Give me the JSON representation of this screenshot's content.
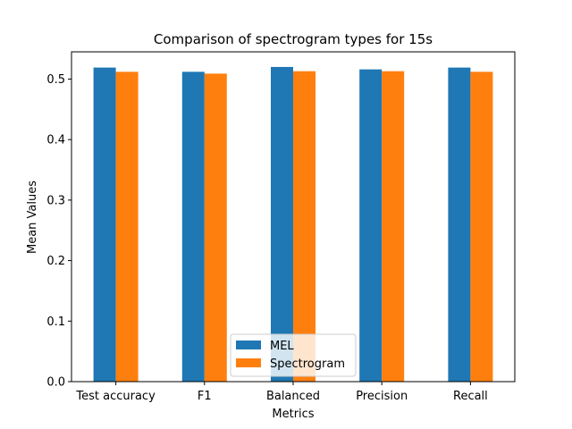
{
  "chart_data": {
    "type": "bar",
    "title": "Comparison of spectrogram types for 15s",
    "xlabel": "Metrics",
    "ylabel": "Mean Values",
    "categories": [
      "Test accuracy",
      "F1",
      "Balanced",
      "Precision",
      "Recall"
    ],
    "series": [
      {
        "name": "MEL",
        "values": [
          0.519,
          0.512,
          0.52,
          0.516,
          0.519
        ],
        "color": "#1f77b4"
      },
      {
        "name": "Spectrogram",
        "values": [
          0.512,
          0.509,
          0.513,
          0.513,
          0.512
        ],
        "color": "#ff7f0e"
      }
    ],
    "ylim": [
      0,
      0.545
    ],
    "yticks": [
      "0.0",
      "0.1",
      "0.2",
      "0.3",
      "0.4",
      "0.5"
    ],
    "grid": false,
    "legend_position": "bottom-center"
  }
}
